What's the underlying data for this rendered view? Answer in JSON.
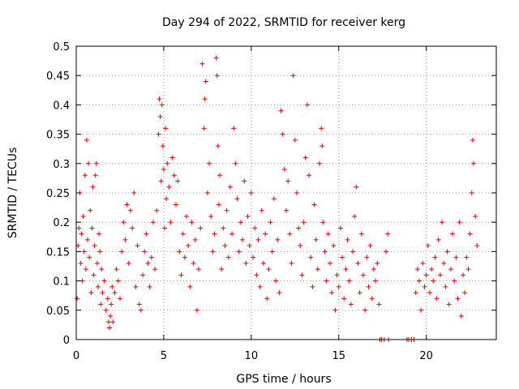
{
  "chart_data": {
    "type": "scatter",
    "title": "Day 294 of 2022, SRMTID for receiver kerg",
    "xlabel": "GPS time / hours",
    "ylabel": "SRMTID / TECUs",
    "xlim": [
      0,
      24
    ],
    "ylim": [
      0,
      0.5
    ],
    "grid": true,
    "marker": "+",
    "marker_color": "#e60000",
    "x_ticks": [
      0,
      5,
      10,
      15,
      20
    ],
    "x_tick_labels": [
      "0",
      "5",
      "10",
      "15",
      "20"
    ],
    "y_ticks": [
      0,
      0.05,
      0.1,
      0.15,
      0.2,
      0.25,
      0.3,
      0.35,
      0.4,
      0.45,
      0.5
    ],
    "y_tick_labels": [
      "0",
      "0.05",
      "0.1",
      "0.15",
      "0.2",
      "0.25",
      "0.3",
      "0.35",
      "0.4",
      "0.45",
      "0.5"
    ],
    "series": [
      {
        "name": "SRMTID",
        "points": [
          [
            0.05,
            0.07
          ],
          [
            0.1,
            0.16
          ],
          [
            0.15,
            0.19
          ],
          [
            0.2,
            0.25
          ],
          [
            0.25,
            0.13
          ],
          [
            0.3,
            0.18
          ],
          [
            0.35,
            0.1
          ],
          [
            0.4,
            0.21
          ],
          [
            0.45,
            0.15
          ],
          [
            0.5,
            0.28
          ],
          [
            0.55,
            0.12
          ],
          [
            0.6,
            0.34
          ],
          [
            0.65,
            0.17
          ],
          [
            0.7,
            0.3
          ],
          [
            0.75,
            0.14
          ],
          [
            0.8,
            0.22
          ],
          [
            0.85,
            0.08
          ],
          [
            0.9,
            0.19
          ],
          [
            0.95,
            0.26
          ],
          [
            1.0,
            0.11
          ],
          [
            1.05,
            0.16
          ],
          [
            1.1,
            0.28
          ],
          [
            1.15,
            0.3
          ],
          [
            1.2,
            0.13
          ],
          [
            1.25,
            0.09
          ],
          [
            1.3,
            0.18
          ],
          [
            1.35,
            0.15
          ],
          [
            1.4,
            0.06
          ],
          [
            1.45,
            0.12
          ],
          [
            1.5,
            0.08
          ],
          [
            1.6,
            0.1
          ],
          [
            1.7,
            0.05
          ],
          [
            1.8,
            0.07
          ],
          [
            1.85,
            0.03
          ],
          [
            1.9,
            0.02
          ],
          [
            1.95,
            0.04
          ],
          [
            2.0,
            0.06
          ],
          [
            2.05,
            0.09
          ],
          [
            2.1,
            0.03
          ],
          [
            2.2,
            0.08
          ],
          [
            2.3,
            0.12
          ],
          [
            2.4,
            0.1
          ],
          [
            2.5,
            0.07
          ],
          [
            2.6,
            0.15
          ],
          [
            2.7,
            0.2
          ],
          [
            2.8,
            0.17
          ],
          [
            2.9,
            0.23
          ],
          [
            3.0,
            0.13
          ],
          [
            3.1,
            0.22
          ],
          [
            3.2,
            0.19
          ],
          [
            3.3,
            0.25
          ],
          [
            3.4,
            0.09
          ],
          [
            3.5,
            0.16
          ],
          [
            3.6,
            0.06
          ],
          [
            3.7,
            0.05
          ],
          [
            3.8,
            0.11
          ],
          [
            3.9,
            0.15
          ],
          [
            4.0,
            0.18
          ],
          [
            4.1,
            0.13
          ],
          [
            4.2,
            0.09
          ],
          [
            4.3,
            0.14
          ],
          [
            4.4,
            0.2
          ],
          [
            4.5,
            0.12
          ],
          [
            4.6,
            0.22
          ],
          [
            4.7,
            0.35
          ],
          [
            4.75,
            0.41
          ],
          [
            4.8,
            0.38
          ],
          [
            4.85,
            0.27
          ],
          [
            4.9,
            0.4
          ],
          [
            4.95,
            0.33
          ],
          [
            5.0,
            0.29
          ],
          [
            5.05,
            0.19
          ],
          [
            5.1,
            0.36
          ],
          [
            5.15,
            0.24
          ],
          [
            5.2,
            0.3
          ],
          [
            5.3,
            0.26
          ],
          [
            5.4,
            0.2
          ],
          [
            5.5,
            0.31
          ],
          [
            5.6,
            0.28
          ],
          [
            5.7,
            0.23
          ],
          [
            5.8,
            0.27
          ],
          [
            5.9,
            0.15
          ],
          [
            6.0,
            0.11
          ],
          [
            6.1,
            0.18
          ],
          [
            6.2,
            0.14
          ],
          [
            6.3,
            0.21
          ],
          [
            6.4,
            0.16
          ],
          [
            6.5,
            0.09
          ],
          [
            6.6,
            0.2
          ],
          [
            6.7,
            0.13
          ],
          [
            6.8,
            0.17
          ],
          [
            6.9,
            0.05
          ],
          [
            7.0,
            0.12
          ],
          [
            7.1,
            0.19
          ],
          [
            7.2,
            0.47
          ],
          [
            7.3,
            0.36
          ],
          [
            7.35,
            0.41
          ],
          [
            7.4,
            0.44
          ],
          [
            7.5,
            0.25
          ],
          [
            7.6,
            0.3
          ],
          [
            7.7,
            0.21
          ],
          [
            7.8,
            0.15
          ],
          [
            7.9,
            0.18
          ],
          [
            8.0,
            0.48
          ],
          [
            8.05,
            0.45
          ],
          [
            8.1,
            0.33
          ],
          [
            8.15,
            0.23
          ],
          [
            8.2,
            0.28
          ],
          [
            8.3,
            0.12
          ],
          [
            8.4,
            0.19
          ],
          [
            8.5,
            0.16
          ],
          [
            8.6,
            0.22
          ],
          [
            8.7,
            0.14
          ],
          [
            8.8,
            0.26
          ],
          [
            8.9,
            0.18
          ],
          [
            9.0,
            0.36
          ],
          [
            9.1,
            0.3
          ],
          [
            9.2,
            0.24
          ],
          [
            9.3,
            0.15
          ],
          [
            9.4,
            0.2
          ],
          [
            9.5,
            0.17
          ],
          [
            9.6,
            0.27
          ],
          [
            9.7,
            0.13
          ],
          [
            9.8,
            0.21
          ],
          [
            9.9,
            0.16
          ],
          [
            10.0,
            0.25
          ],
          [
            10.1,
            0.14
          ],
          [
            10.2,
            0.19
          ],
          [
            10.3,
            0.11
          ],
          [
            10.4,
            0.17
          ],
          [
            10.5,
            0.09
          ],
          [
            10.6,
            0.22
          ],
          [
            10.7,
            0.13
          ],
          [
            10.8,
            0.18
          ],
          [
            10.9,
            0.07
          ],
          [
            11.0,
            0.12
          ],
          [
            11.1,
            0.2
          ],
          [
            11.2,
            0.15
          ],
          [
            11.3,
            0.24
          ],
          [
            11.4,
            0.1
          ],
          [
            11.5,
            0.17
          ],
          [
            11.6,
            0.08
          ],
          [
            11.7,
            0.39
          ],
          [
            11.8,
            0.35
          ],
          [
            11.9,
            0.29
          ],
          [
            12.0,
            0.22
          ],
          [
            12.1,
            0.27
          ],
          [
            12.2,
            0.18
          ],
          [
            12.3,
            0.13
          ],
          [
            12.4,
            0.45
          ],
          [
            12.5,
            0.34
          ],
          [
            12.6,
            0.25
          ],
          [
            12.7,
            0.19
          ],
          [
            12.8,
            0.16
          ],
          [
            12.9,
            0.11
          ],
          [
            13.0,
            0.2
          ],
          [
            13.1,
            0.31
          ],
          [
            13.2,
            0.4
          ],
          [
            13.3,
            0.28
          ],
          [
            13.4,
            0.14
          ],
          [
            13.5,
            0.09
          ],
          [
            13.6,
            0.23
          ],
          [
            13.7,
            0.17
          ],
          [
            13.8,
            0.12
          ],
          [
            13.9,
            0.3
          ],
          [
            14.0,
            0.36
          ],
          [
            14.05,
            0.33
          ],
          [
            14.1,
            0.2
          ],
          [
            14.2,
            0.15
          ],
          [
            14.3,
            0.1
          ],
          [
            14.4,
            0.18
          ],
          [
            14.5,
            0.13
          ],
          [
            14.6,
            0.08
          ],
          [
            14.7,
            0.16
          ],
          [
            14.8,
            0.05
          ],
          [
            14.9,
            0.11
          ],
          [
            15.0,
            0.09
          ],
          [
            15.1,
            0.19
          ],
          [
            15.2,
            0.14
          ],
          [
            15.3,
            0.07
          ],
          [
            15.4,
            0.12
          ],
          [
            15.5,
            0.17
          ],
          [
            15.6,
            0.1
          ],
          [
            15.7,
            0.06
          ],
          [
            15.8,
            0.15
          ],
          [
            15.9,
            0.21
          ],
          [
            16.0,
            0.26
          ],
          [
            16.1,
            0.13
          ],
          [
            16.2,
            0.08
          ],
          [
            16.3,
            0.18
          ],
          [
            16.4,
            0.11
          ],
          [
            16.5,
            0.05
          ],
          [
            16.6,
            0.14
          ],
          [
            16.7,
            0.09
          ],
          [
            16.8,
            0.16
          ],
          [
            16.9,
            0.07
          ],
          [
            17.0,
            0.12
          ],
          [
            17.1,
            0.1
          ],
          [
            17.2,
            0.13
          ],
          [
            17.3,
            0.06
          ],
          [
            17.35,
            0.0
          ],
          [
            17.45,
            0.0
          ],
          [
            17.6,
            0.0
          ],
          [
            17.7,
            0.15
          ],
          [
            17.8,
            0.18
          ],
          [
            17.85,
            0.0
          ],
          [
            18.9,
            0.0
          ],
          [
            19.0,
            0.0
          ],
          [
            19.15,
            0.0
          ],
          [
            19.3,
            0.0
          ],
          [
            19.4,
            0.08
          ],
          [
            19.5,
            0.12
          ],
          [
            19.6,
            0.1
          ],
          [
            19.7,
            0.05
          ],
          [
            19.8,
            0.13
          ],
          [
            19.9,
            0.09
          ],
          [
            20.0,
            0.11
          ],
          [
            20.1,
            0.16
          ],
          [
            20.2,
            0.08
          ],
          [
            20.3,
            0.12
          ],
          [
            20.4,
            0.1
          ],
          [
            20.5,
            0.14
          ],
          [
            20.6,
            0.07
          ],
          [
            20.7,
            0.17
          ],
          [
            20.8,
            0.11
          ],
          [
            20.9,
            0.2
          ],
          [
            21.0,
            0.13
          ],
          [
            21.1,
            0.09
          ],
          [
            21.2,
            0.15
          ],
          [
            21.3,
            0.06
          ],
          [
            21.4,
            0.12
          ],
          [
            21.5,
            0.18
          ],
          [
            21.6,
            0.1
          ],
          [
            21.7,
            0.14
          ],
          [
            21.8,
            0.07
          ],
          [
            21.9,
            0.2
          ],
          [
            22.0,
            0.04
          ],
          [
            22.1,
            0.11
          ],
          [
            22.2,
            0.08
          ],
          [
            22.3,
            0.14
          ],
          [
            22.4,
            0.12
          ],
          [
            22.5,
            0.18
          ],
          [
            22.6,
            0.25
          ],
          [
            22.65,
            0.34
          ],
          [
            22.7,
            0.3
          ],
          [
            22.8,
            0.21
          ],
          [
            22.9,
            0.16
          ]
        ]
      }
    ]
  }
}
